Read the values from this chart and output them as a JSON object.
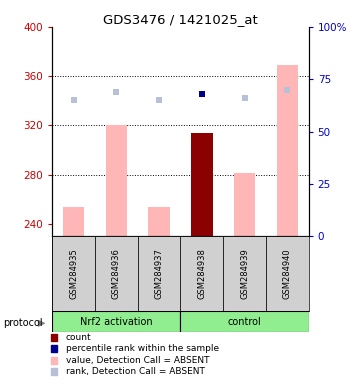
{
  "title": "GDS3476 / 1421025_at",
  "samples": [
    "GSM284935",
    "GSM284936",
    "GSM284937",
    "GSM284938",
    "GSM284939",
    "GSM284940"
  ],
  "ylim_left": [
    230,
    400
  ],
  "ylim_right": [
    0,
    100
  ],
  "yticks_left": [
    240,
    280,
    320,
    360,
    400
  ],
  "yticks_right": [
    0,
    25,
    50,
    75,
    100
  ],
  "bar_values": [
    254,
    320,
    254,
    314,
    281,
    369
  ],
  "bar_colors": [
    "#ffb6b6",
    "#ffb6b6",
    "#ffb6b6",
    "#8b0000",
    "#ffb6b6",
    "#ffb6b6"
  ],
  "rank_values_pct": [
    65,
    69,
    65,
    68,
    66,
    70
  ],
  "rank_colors": [
    "#b8c0d8",
    "#b8c0d8",
    "#b8c0d8",
    "#00008b",
    "#b8c0d8",
    "#b8c0d8"
  ],
  "grid_lines": [
    280,
    320,
    360
  ],
  "left_axis_color": "#cc0000",
  "right_axis_color": "#0000cc",
  "plot_bg": "white",
  "group1_label": "Nrf2 activation",
  "group2_label": "control",
  "group_color": "#90ee90",
  "legend_items": [
    {
      "label": "count",
      "color": "#8b0000"
    },
    {
      "label": "percentile rank within the sample",
      "color": "#00008b"
    },
    {
      "label": "value, Detection Call = ABSENT",
      "color": "#ffb6b6"
    },
    {
      "label": "rank, Detection Call = ABSENT",
      "color": "#b8c0d8"
    }
  ]
}
